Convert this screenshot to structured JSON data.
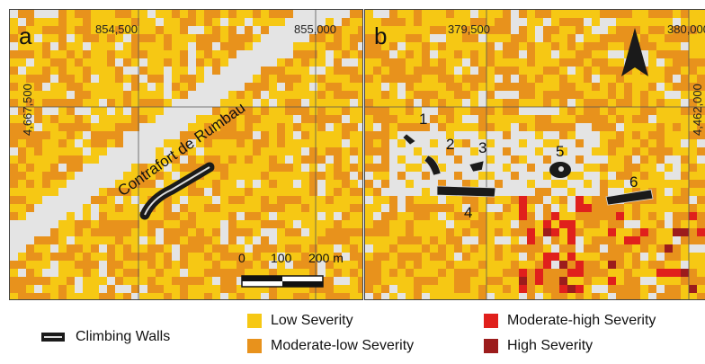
{
  "panel_a": {
    "letter": "a",
    "x_coords": [
      "854,500",
      "855,000"
    ],
    "y_coord": "4,667,500",
    "area_label": "Contrafort de Rumbau",
    "scale": {
      "labels": [
        "0",
        "100",
        "200 m"
      ]
    }
  },
  "panel_b": {
    "letter": "b",
    "x_coords": [
      "379,500",
      "380,000"
    ],
    "y_coord": "4,462,000",
    "sites": [
      "1",
      "2",
      "3",
      "4",
      "5",
      "6"
    ]
  },
  "legend": {
    "climbing_walls": "Climbing Walls",
    "low": "Low Severity",
    "moderate_low": "Moderate-low Severity",
    "moderate_high": "Moderate-high Severity",
    "high": "High Severity"
  },
  "colors": {
    "low": "#f6c814",
    "moderate_low": "#e8921c",
    "moderate_high": "#e0201c",
    "high": "#9c1c1c",
    "unburned": "#e4e4e4",
    "wall": "#1a1a1a"
  }
}
